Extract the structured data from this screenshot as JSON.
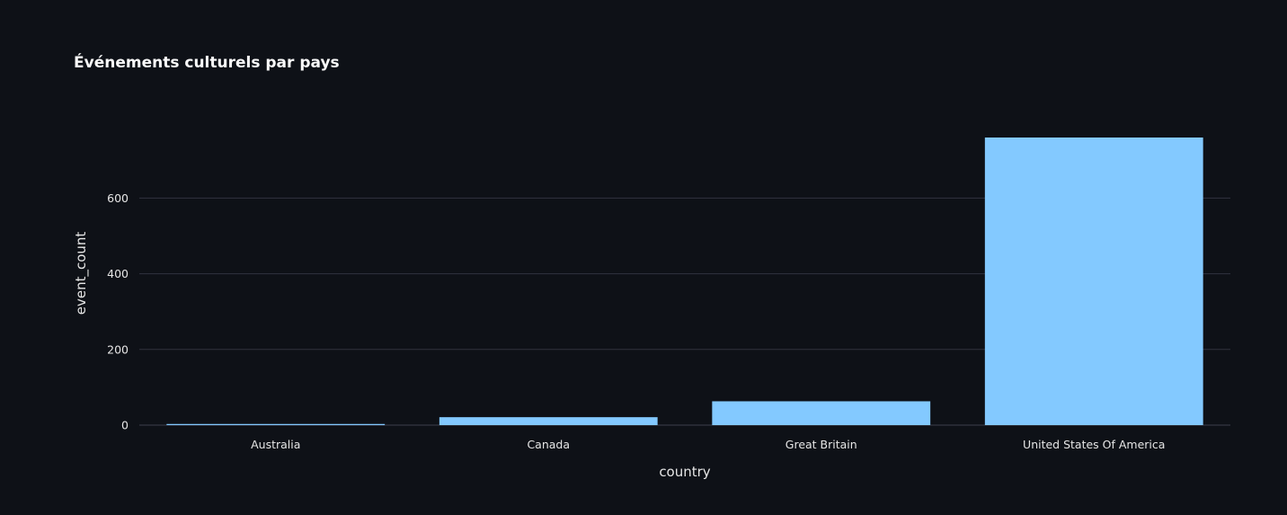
{
  "chart_data": {
    "type": "bar",
    "title": "Événements culturels par pays",
    "xlabel": "country",
    "ylabel": "event_count",
    "categories": [
      "Australia",
      "Canada",
      "Great Britain",
      "United States Of America"
    ],
    "values": [
      3,
      21,
      63,
      760
    ],
    "ylim": [
      0,
      760
    ],
    "yticks": [
      0,
      200,
      400,
      600
    ],
    "grid": true,
    "bar_color": "#83c9ff",
    "background_color": "#0e1117"
  }
}
